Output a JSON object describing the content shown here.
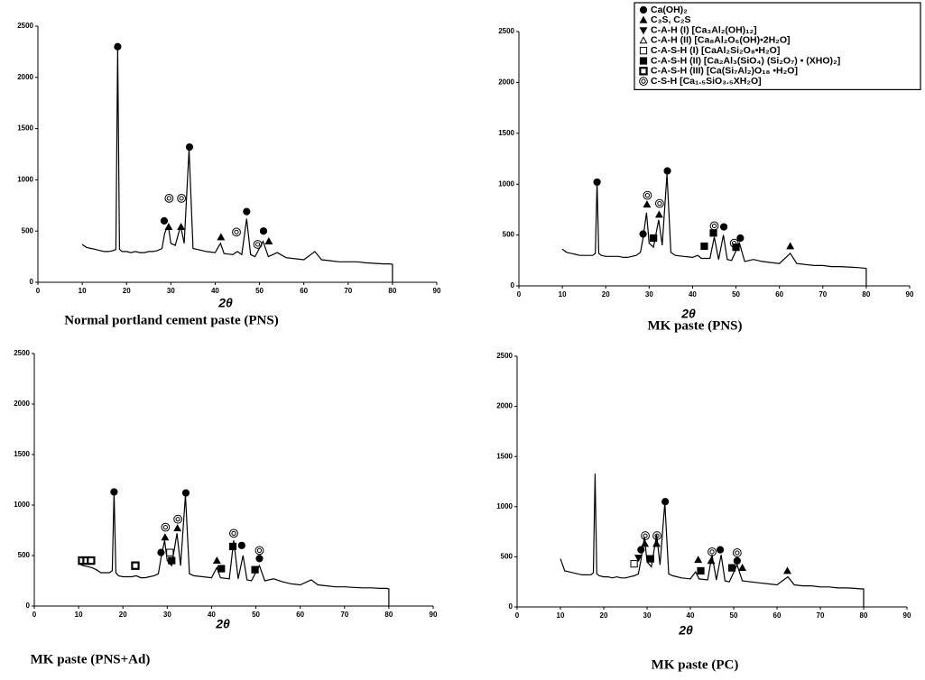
{
  "chart_data": [
    {
      "type": "line",
      "title": "Normal portland cement paste (PNS)",
      "xlabel": "2θ",
      "color": "#000000",
      "xlim": [
        0,
        90
      ],
      "ylim": [
        0,
        2500
      ],
      "xticks": [
        0,
        10,
        20,
        30,
        40,
        50,
        60,
        70,
        80,
        90
      ],
      "yticks": [
        0,
        500,
        1000,
        1500,
        2000,
        2500
      ],
      "x": [
        10,
        11,
        12,
        13,
        14,
        15,
        16,
        17,
        17.6,
        18.0,
        18.4,
        19,
        20,
        21,
        22,
        23,
        24,
        25,
        26,
        27,
        28,
        28.6,
        29.4,
        30,
        31,
        32.2,
        33,
        34.1,
        35,
        36,
        38,
        40,
        41.2,
        42,
        44,
        45,
        46,
        47.1,
        48,
        49,
        50.8,
        52,
        54,
        56,
        58,
        60,
        62.5,
        64,
        66,
        68,
        70,
        72,
        74,
        76,
        78,
        79.5,
        80,
        80
      ],
      "values": [
        370,
        340,
        330,
        320,
        310,
        300,
        300,
        310,
        320,
        2300,
        320,
        300,
        300,
        290,
        300,
        290,
        290,
        300,
        300,
        310,
        330,
        480,
        560,
        380,
        360,
        550,
        380,
        1300,
        330,
        320,
        300,
        290,
        380,
        280,
        270,
        300,
        270,
        620,
        270,
        250,
        400,
        250,
        290,
        240,
        230,
        220,
        300,
        220,
        210,
        200,
        200,
        200,
        190,
        185,
        180,
        180,
        175,
        0
      ],
      "markers": [
        {
          "symbol": "circle",
          "x": 18,
          "y": 2300
        },
        {
          "symbol": "circle",
          "x": 28.5,
          "y": 600
        },
        {
          "symbol": "triangle",
          "x": 29.5,
          "y": 540
        },
        {
          "symbol": "bullseye",
          "x": 29.6,
          "y": 820
        },
        {
          "symbol": "triangle",
          "x": 32.3,
          "y": 540
        },
        {
          "symbol": "bullseye",
          "x": 32.4,
          "y": 820
        },
        {
          "symbol": "circle",
          "x": 34.2,
          "y": 1320
        },
        {
          "symbol": "triangle",
          "x": 41.3,
          "y": 440
        },
        {
          "symbol": "bullseye",
          "x": 44.8,
          "y": 490
        },
        {
          "symbol": "circle",
          "x": 47.1,
          "y": 690
        },
        {
          "symbol": "bullseye",
          "x": 49.6,
          "y": 370
        },
        {
          "symbol": "circle",
          "x": 50.9,
          "y": 500
        },
        {
          "symbol": "triangle",
          "x": 52.1,
          "y": 400
        }
      ]
    },
    {
      "type": "line",
      "title": "MK paste (PNS)",
      "xlabel": "2θ",
      "color": "#000000",
      "xlim": [
        0,
        90
      ],
      "ylim": [
        0,
        2500
      ],
      "xticks": [
        0,
        10,
        20,
        30,
        40,
        50,
        60,
        70,
        80,
        90
      ],
      "yticks": [
        0,
        500,
        1000,
        1500,
        2000,
        2500
      ],
      "x": [
        10,
        11,
        12,
        13,
        14,
        15,
        16,
        17,
        17.6,
        18.0,
        18.4,
        19,
        20,
        21,
        22,
        23,
        24,
        25,
        26,
        27,
        28,
        28.6,
        29.4,
        30,
        31,
        32.2,
        33,
        34.1,
        35,
        36,
        38,
        40,
        41.2,
        42,
        44,
        45,
        46,
        47.1,
        48,
        49,
        50.8,
        52,
        54,
        56,
        58,
        60,
        62.5,
        64,
        66,
        68,
        70,
        72,
        74,
        76,
        78,
        79.5,
        80,
        80
      ],
      "values": [
        360,
        330,
        320,
        310,
        300,
        300,
        300,
        300,
        320,
        1020,
        320,
        300,
        290,
        290,
        290,
        290,
        280,
        280,
        290,
        300,
        330,
        470,
        720,
        420,
        380,
        650,
        400,
        1100,
        330,
        300,
        290,
        280,
        300,
        270,
        270,
        480,
        260,
        500,
        260,
        250,
        420,
        240,
        260,
        240,
        230,
        220,
        320,
        220,
        210,
        200,
        200,
        190,
        190,
        185,
        180,
        175,
        170,
        0
      ],
      "markers": [
        {
          "symbol": "circle",
          "x": 18,
          "y": 1020
        },
        {
          "symbol": "circle",
          "x": 28.6,
          "y": 510
        },
        {
          "symbol": "triangle",
          "x": 29.5,
          "y": 800
        },
        {
          "symbol": "bullseye",
          "x": 29.6,
          "y": 890
        },
        {
          "symbol": "square",
          "x": 31,
          "y": 470
        },
        {
          "symbol": "triangle",
          "x": 32.3,
          "y": 700
        },
        {
          "symbol": "bullseye",
          "x": 32.4,
          "y": 810
        },
        {
          "symbol": "circle",
          "x": 34.2,
          "y": 1130
        },
        {
          "symbol": "square",
          "x": 42.7,
          "y": 390
        },
        {
          "symbol": "square",
          "x": 44.8,
          "y": 520
        },
        {
          "symbol": "bullseye",
          "x": 45,
          "y": 590
        },
        {
          "symbol": "circle",
          "x": 47.2,
          "y": 580
        },
        {
          "symbol": "bullseye",
          "x": 49.6,
          "y": 420
        },
        {
          "symbol": "square",
          "x": 50,
          "y": 380
        },
        {
          "symbol": "circle",
          "x": 51,
          "y": 470
        },
        {
          "symbol": "triangle",
          "x": 62.5,
          "y": 390
        }
      ]
    },
    {
      "type": "line",
      "title": "MK paste (PNS+Ad)",
      "xlabel": "2θ",
      "color": "#000000",
      "xlim": [
        0,
        90
      ],
      "ylim": [
        0,
        2500
      ],
      "xticks": [
        0,
        10,
        20,
        30,
        40,
        50,
        60,
        70,
        80,
        90
      ],
      "yticks": [
        0,
        500,
        1000,
        1500,
        2000,
        2500
      ],
      "x": [
        10,
        11,
        12,
        13,
        14,
        15,
        16,
        17,
        17.6,
        18.0,
        18.4,
        19,
        20,
        21,
        22,
        23,
        24,
        25,
        26,
        27,
        28,
        28.6,
        29.4,
        30,
        31,
        32.2,
        33,
        34.1,
        35,
        36,
        38,
        40,
        41.2,
        42,
        44,
        45,
        46,
        47.1,
        48,
        49,
        50.8,
        52,
        54,
        56,
        58,
        60,
        62.5,
        64,
        66,
        68,
        70,
        72,
        74,
        76,
        78,
        79.5,
        80,
        80
      ],
      "values": [
        420,
        400,
        390,
        380,
        360,
        330,
        330,
        330,
        350,
        1130,
        330,
        300,
        290,
        290,
        290,
        300,
        280,
        280,
        290,
        300,
        320,
        480,
        650,
        450,
        400,
        720,
        400,
        1100,
        320,
        300,
        290,
        280,
        380,
        280,
        270,
        650,
        270,
        500,
        260,
        250,
        400,
        250,
        270,
        240,
        220,
        210,
        260,
        210,
        200,
        190,
        190,
        185,
        180,
        180,
        175,
        175,
        170,
        0
      ],
      "markers": [
        {
          "symbol": "square-small",
          "x": 10.8,
          "y": 450
        },
        {
          "symbol": "square-small",
          "x": 11.8,
          "y": 450
        },
        {
          "symbol": "square-small",
          "x": 12.8,
          "y": 450
        },
        {
          "symbol": "square-small",
          "x": 22.8,
          "y": 400
        },
        {
          "symbol": "circle",
          "x": 18,
          "y": 1130
        },
        {
          "symbol": "circle",
          "x": 28.6,
          "y": 530
        },
        {
          "symbol": "triangle",
          "x": 29.5,
          "y": 680
        },
        {
          "symbol": "bullseye",
          "x": 29.6,
          "y": 780
        },
        {
          "symbol": "square-open",
          "x": 30.6,
          "y": 530
        },
        {
          "symbol": "square",
          "x": 31,
          "y": 450
        },
        {
          "symbol": "triangle",
          "x": 32.3,
          "y": 770
        },
        {
          "symbol": "bullseye",
          "x": 32.4,
          "y": 860
        },
        {
          "symbol": "circle",
          "x": 34.2,
          "y": 1120
        },
        {
          "symbol": "triangle",
          "x": 41.2,
          "y": 450
        },
        {
          "symbol": "square",
          "x": 42.2,
          "y": 370
        },
        {
          "symbol": "square",
          "x": 44.8,
          "y": 590
        },
        {
          "symbol": "bullseye",
          "x": 45,
          "y": 720
        },
        {
          "symbol": "circle",
          "x": 46.8,
          "y": 600
        },
        {
          "symbol": "square",
          "x": 49.8,
          "y": 360
        },
        {
          "symbol": "circle",
          "x": 50.8,
          "y": 470
        },
        {
          "symbol": "bullseye",
          "x": 50.8,
          "y": 550
        }
      ]
    },
    {
      "type": "line",
      "title": "MK paste (PC)",
      "xlabel": "2θ",
      "color": "#000000",
      "xlim": [
        0,
        90
      ],
      "ylim": [
        0,
        2500
      ],
      "xticks": [
        0,
        10,
        20,
        30,
        40,
        50,
        60,
        70,
        80,
        90
      ],
      "yticks": [
        0,
        500,
        1000,
        1500,
        2000,
        2500
      ],
      "x": [
        10,
        11,
        12,
        13,
        14,
        15,
        16,
        17,
        17.6,
        18.0,
        18.4,
        19,
        20,
        21,
        22,
        23,
        24,
        25,
        26,
        27,
        28,
        28.6,
        29.4,
        30,
        31,
        32.2,
        33,
        34.1,
        35,
        36,
        38,
        40,
        41.2,
        42,
        44,
        45,
        46,
        47.1,
        48,
        49,
        50.8,
        52,
        54,
        56,
        58,
        60,
        62.5,
        64,
        66,
        68,
        70,
        72,
        74,
        76,
        78,
        79.5,
        80,
        80
      ],
      "values": [
        480,
        360,
        350,
        340,
        330,
        320,
        320,
        320,
        340,
        1330,
        330,
        310,
        300,
        300,
        290,
        300,
        290,
        290,
        300,
        310,
        330,
        470,
        700,
        450,
        400,
        720,
        420,
        1040,
        330,
        310,
        290,
        280,
        350,
        280,
        270,
        520,
        270,
        520,
        260,
        250,
        420,
        260,
        250,
        240,
        230,
        220,
        300,
        220,
        210,
        210,
        200,
        200,
        190,
        190,
        185,
        180,
        180,
        0
      ],
      "markers": [
        {
          "symbol": "square-open",
          "x": 27,
          "y": 430
        },
        {
          "symbol": "triangle-down",
          "x": 28,
          "y": 490
        },
        {
          "symbol": "circle",
          "x": 28.6,
          "y": 570
        },
        {
          "symbol": "triangle",
          "x": 29.5,
          "y": 630
        },
        {
          "symbol": "bullseye",
          "x": 29.6,
          "y": 710
        },
        {
          "symbol": "square",
          "x": 30.8,
          "y": 480
        },
        {
          "symbol": "triangle",
          "x": 32.2,
          "y": 630
        },
        {
          "symbol": "bullseye",
          "x": 32.3,
          "y": 710
        },
        {
          "symbol": "circle",
          "x": 34.2,
          "y": 1050
        },
        {
          "symbol": "triangle",
          "x": 41.8,
          "y": 470
        },
        {
          "symbol": "square",
          "x": 42.4,
          "y": 360
        },
        {
          "symbol": "triangle",
          "x": 44.8,
          "y": 460
        },
        {
          "symbol": "bullseye",
          "x": 45,
          "y": 550
        },
        {
          "symbol": "circle",
          "x": 46.9,
          "y": 570
        },
        {
          "symbol": "square",
          "x": 49.6,
          "y": 390
        },
        {
          "symbol": "circle",
          "x": 50.8,
          "y": 460
        },
        {
          "symbol": "bullseye",
          "x": 50.8,
          "y": 540
        },
        {
          "symbol": "triangle",
          "x": 52,
          "y": 390
        },
        {
          "symbol": "triangle",
          "x": 62.4,
          "y": 360
        }
      ]
    }
  ],
  "legend": [
    {
      "label": "Ca(OH)₂",
      "symbol": "circle"
    },
    {
      "label": "C₃S, C₂S",
      "symbol": "triangle"
    },
    {
      "label": "C-A-H (I)    [Ca₃Al₂(OH)₁₂]",
      "symbol": "triangle-down"
    },
    {
      "label": "C-A-H (II)  [Ca₈Al₂O₆(OH)•2H₂O]",
      "symbol": "triangle-open"
    },
    {
      "label": "C-A-S-H (I) [CaAl₂Si₂O₈•H₂O]",
      "symbol": "square-open"
    },
    {
      "label": "C-A-S-H (II)  [Ca₂Al₃(SiO₄) (Si₂O₇) • (XHO)₂]",
      "symbol": "square"
    },
    {
      "label": "C-A-S-H (III) [Ca(Si₇Al₂)O₁₈ •H₂O]",
      "symbol": "square-small"
    },
    {
      "label": "C-S-H [Ca₁.₅SiO₃.₅XH₂O]",
      "symbol": "bullseye"
    }
  ]
}
